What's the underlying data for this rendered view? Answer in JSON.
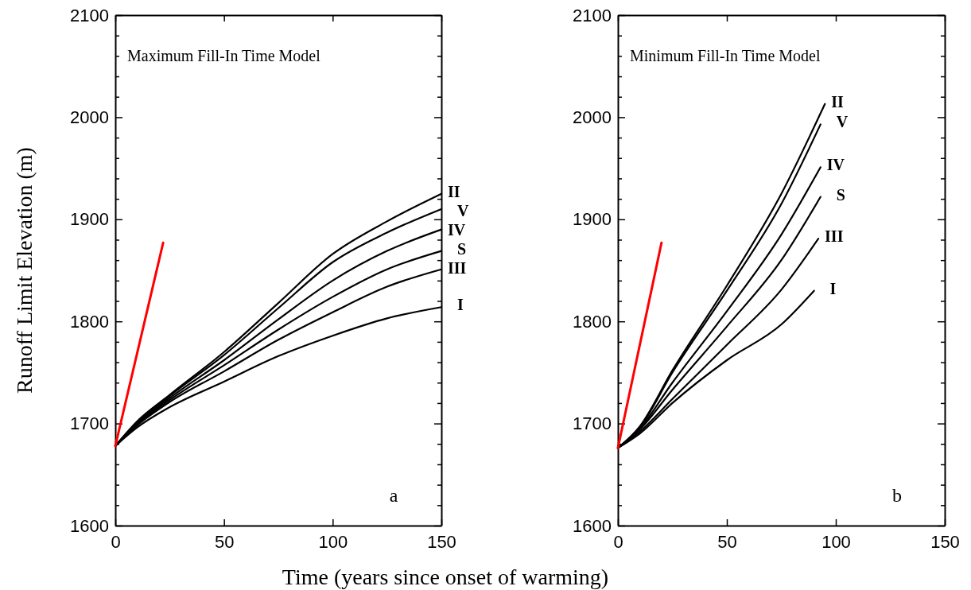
{
  "chart_data": [
    {
      "type": "line",
      "title": "Maximum Fill-In Time Model",
      "xlabel": "Time (years since onset of warming)",
      "ylabel": "Runoff Limit Elevation (m)",
      "annotations": [
        "a"
      ],
      "xlim": [
        0,
        150
      ],
      "ylim": [
        1600,
        2100
      ],
      "xticks": [
        0,
        50,
        100,
        150
      ],
      "yticks": [
        1600,
        {
          "value": 1620,
          "label": null
        },
        {
          "value": 1640,
          "label": null
        },
        {
          "value": 1660,
          "label": null
        },
        {
          "value": 1680,
          "label": null
        },
        1700,
        {
          "value": 1720,
          "label": null
        },
        {
          "value": 1740,
          "label": null
        },
        {
          "value": 1760,
          "label": null
        },
        {
          "value": 1780,
          "label": null
        },
        1800,
        {
          "value": 1820,
          "label": null
        },
        {
          "value": 1840,
          "label": null
        },
        {
          "value": 1860,
          "label": null
        },
        {
          "value": 1880,
          "label": null
        },
        1900,
        {
          "value": 1920,
          "label": null
        },
        {
          "value": 1940,
          "label": null
        },
        {
          "value": 1960,
          "label": null
        },
        {
          "value": 1980,
          "label": null
        },
        2000,
        {
          "value": 2020,
          "label": null
        },
        {
          "value": 2040,
          "label": null
        },
        {
          "value": 2060,
          "label": null
        },
        {
          "value": 2080,
          "label": null
        },
        2100
      ],
      "grid": false,
      "legend": "right",
      "series": [
        {
          "name": "II",
          "color": "#000000",
          "x": [
            0,
            10,
            25,
            50,
            75,
            100,
            125,
            150
          ],
          "values": [
            1678,
            1702,
            1728,
            1770,
            1818,
            1866,
            1898,
            1925
          ]
        },
        {
          "name": "V",
          "color": "#000000",
          "x": [
            0,
            10,
            25,
            50,
            75,
            100,
            125,
            150
          ],
          "values": [
            1678,
            1701,
            1727,
            1767,
            1813,
            1858,
            1887,
            1910
          ]
        },
        {
          "name": "IV",
          "color": "#000000",
          "x": [
            0,
            10,
            25,
            50,
            75,
            100,
            125,
            150
          ],
          "values": [
            1678,
            1700,
            1725,
            1762,
            1802,
            1840,
            1869,
            1890
          ]
        },
        {
          "name": "S",
          "color": "#000000",
          "x": [
            0,
            10,
            25,
            50,
            75,
            100,
            125,
            150
          ],
          "values": [
            1678,
            1699,
            1723,
            1757,
            1792,
            1824,
            1851,
            1869
          ]
        },
        {
          "name": "III",
          "color": "#000000",
          "x": [
            0,
            10,
            25,
            50,
            75,
            100,
            125,
            150
          ],
          "values": [
            1678,
            1698,
            1721,
            1751,
            1782,
            1809,
            1834,
            1851
          ]
        },
        {
          "name": "I",
          "color": "#000000",
          "x": [
            0,
            10,
            25,
            50,
            75,
            100,
            125,
            150
          ],
          "values": [
            1678,
            1696,
            1716,
            1741,
            1766,
            1786,
            1803,
            1814
          ]
        },
        {
          "color": "#ff0000",
          "x": [
            0,
            22
          ],
          "values": [
            1678,
            1877
          ]
        }
      ]
    },
    {
      "type": "line",
      "title": "Minimum Fill-In Time Model",
      "annotations": [
        "b"
      ],
      "xlim": [
        0,
        150
      ],
      "ylim": [
        1600,
        2100
      ],
      "xticks": [
        0,
        50,
        100,
        150
      ],
      "yticks": [
        1600,
        {
          "value": 1620,
          "label": null
        },
        {
          "value": 1640,
          "label": null
        },
        {
          "value": 1660,
          "label": null
        },
        {
          "value": 1680,
          "label": null
        },
        1700,
        {
          "value": 1720,
          "label": null
        },
        {
          "value": 1740,
          "label": null
        },
        {
          "value": 1760,
          "label": null
        },
        {
          "value": 1780,
          "label": null
        },
        1800,
        {
          "value": 1820,
          "label": null
        },
        {
          "value": 1840,
          "label": null
        },
        {
          "value": 1860,
          "label": null
        },
        {
          "value": 1880,
          "label": null
        },
        1900,
        {
          "value": 1920,
          "label": null
        },
        {
          "value": 1940,
          "label": null
        },
        {
          "value": 1960,
          "label": null
        },
        {
          "value": 1980,
          "label": null
        },
        2000,
        {
          "value": 2020,
          "label": null
        },
        {
          "value": 2040,
          "label": null
        },
        {
          "value": 2060,
          "label": null
        },
        {
          "value": 2080,
          "label": null
        },
        2100
      ],
      "grid": false,
      "legend": "right",
      "series": [
        {
          "name": "II",
          "color": "#000000",
          "x": [
            0,
            10,
            25,
            50,
            75,
            95
          ],
          "values": [
            1676,
            1697,
            1752,
            1835,
            1925,
            2013
          ]
        },
        {
          "name": "V",
          "color": "#000000",
          "x": [
            0,
            10,
            25,
            50,
            75,
            93
          ],
          "values": [
            1676,
            1696,
            1750,
            1830,
            1915,
            1993
          ]
        },
        {
          "name": "IV",
          "color": "#000000",
          "x": [
            0,
            10,
            25,
            50,
            75,
            93
          ],
          "values": [
            1676,
            1695,
            1740,
            1810,
            1885,
            1951
          ]
        },
        {
          "name": "S",
          "color": "#000000",
          "x": [
            0,
            10,
            25,
            50,
            75,
            93
          ],
          "values": [
            1676,
            1694,
            1733,
            1795,
            1860,
            1922
          ]
        },
        {
          "name": "III",
          "color": "#000000",
          "x": [
            0,
            10,
            25,
            50,
            75,
            92
          ],
          "values": [
            1676,
            1692,
            1724,
            1777,
            1831,
            1881
          ]
        },
        {
          "name": "I",
          "color": "#000000",
          "x": [
            0,
            10,
            25,
            50,
            75,
            90
          ],
          "values": [
            1676,
            1690,
            1720,
            1762,
            1797,
            1830
          ]
        },
        {
          "color": "#ff0000",
          "x": [
            0,
            20
          ],
          "values": [
            1676,
            1877
          ]
        }
      ]
    }
  ]
}
